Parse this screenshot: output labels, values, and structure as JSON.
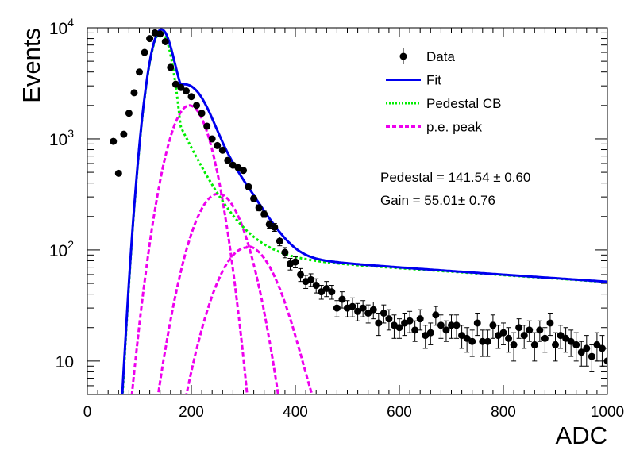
{
  "chart_data": {
    "type": "scatter",
    "xlabel": "ADC",
    "ylabel": "Events",
    "xlim": [
      0,
      1000
    ],
    "ylim": [
      5,
      10000
    ],
    "y_scale": "log",
    "x_ticks": [
      "0",
      "200",
      "400",
      "600",
      "800",
      "1000"
    ],
    "y_ticks": [
      {
        "label": "10",
        "sup": ""
      },
      {
        "label": "10",
        "sup": "2"
      },
      {
        "label": "10",
        "sup": "3"
      },
      {
        "label": "10",
        "sup": "4"
      }
    ],
    "legend_position": "top-right",
    "legend": [
      {
        "label": "Data",
        "style": "marker"
      },
      {
        "label": "Fit",
        "style": "line"
      },
      {
        "label": "Pedestal CB",
        "style": "dotted"
      },
      {
        "label": "p.e. peak",
        "style": "dashed"
      }
    ],
    "annotations": [
      {
        "name": "pedestal",
        "text": "Pedestal = 141.54 ± 0.60"
      },
      {
        "name": "gain",
        "text": "Gain = 55.01± 0.76"
      }
    ],
    "series": [
      {
        "name": "Data",
        "color": "#000000",
        "x": [
          50,
          60,
          70,
          80,
          90,
          100,
          110,
          120,
          130,
          140,
          150,
          160,
          170,
          180,
          190,
          200,
          210,
          220,
          230,
          240,
          250,
          260,
          270,
          280,
          290,
          300,
          310,
          320,
          330,
          340,
          350,
          360,
          370,
          380,
          390,
          400,
          410,
          420,
          430,
          440,
          450,
          460,
          470,
          480,
          490,
          500,
          510,
          520,
          530,
          540,
          550,
          560,
          570,
          580,
          590,
          600,
          610,
          620,
          630,
          640,
          650,
          660,
          670,
          680,
          690,
          700,
          710,
          720,
          730,
          740,
          750,
          760,
          770,
          780,
          790,
          800,
          810,
          820,
          830,
          840,
          850,
          860,
          870,
          880,
          890,
          900,
          910,
          920,
          930,
          940,
          950,
          960,
          970,
          980,
          990,
          1000
        ],
        "y": [
          950,
          490,
          1100,
          1700,
          2600,
          4000,
          6000,
          8000,
          9000,
          8800,
          7500,
          4400,
          3100,
          2900,
          2700,
          2400,
          2000,
          1700,
          1300,
          1000,
          870,
          790,
          640,
          580,
          550,
          520,
          370,
          290,
          240,
          210,
          170,
          160,
          120,
          95,
          75,
          78,
          60,
          52,
          54,
          48,
          42,
          45,
          42,
          30,
          36,
          30,
          31,
          28,
          30,
          27,
          29,
          22,
          27,
          24,
          21,
          20,
          22,
          23,
          19,
          24,
          17,
          18,
          26,
          21,
          19,
          21,
          21,
          17,
          16,
          15,
          22,
          15,
          15,
          21,
          17,
          18,
          16,
          14,
          20,
          17,
          19,
          14,
          19,
          16,
          22,
          14,
          17,
          16,
          15,
          14,
          12,
          13,
          11,
          14,
          13,
          10
        ],
        "yerr": [
          31,
          22,
          33,
          41,
          51,
          63,
          77,
          89,
          95,
          94,
          87,
          66,
          56,
          54,
          52,
          49,
          45,
          41,
          36,
          32,
          29,
          28,
          25,
          24,
          23,
          23,
          19,
          17,
          15,
          14,
          13,
          13,
          11,
          10,
          9,
          9,
          8,
          7,
          7,
          7,
          6,
          7,
          6,
          5,
          6,
          5,
          6,
          5,
          5,
          5,
          5,
          5,
          5,
          5,
          5,
          4,
          5,
          5,
          4,
          5,
          4,
          4,
          5,
          5,
          4,
          5,
          5,
          4,
          4,
          4,
          5,
          4,
          4,
          5,
          4,
          4,
          4,
          4,
          4,
          4,
          4,
          4,
          4,
          4,
          5,
          4,
          4,
          4,
          4,
          4,
          3,
          4,
          3,
          4,
          4,
          3
        ]
      }
    ],
    "model": {
      "name": "Fit",
      "pedestal": {
        "mean": 141.54,
        "sigma": 19,
        "amplitude": 9200,
        "tail_amplitude": 9.5,
        "tail_decay": 1400,
        "tail_rise": 45,
        "tail_norm_at": 260,
        "tail_level_at_norm": 320
      },
      "pe_peaks": [
        {
          "mean": 196.55,
          "sigma": 32,
          "amplitude": 2000,
          "tail_amplitude": 0,
          "tail_decay": 1
        },
        {
          "mean": 251.56,
          "sigma": 40,
          "amplitude": 320,
          "tail_amplitude": 0,
          "tail_decay": 1
        },
        {
          "mean": 306.57,
          "sigma": 47,
          "amplitude": 105,
          "tail_amplitude": 3.2,
          "tail_decay": 280
        }
      ]
    },
    "colors": {
      "fit": "#0000ee",
      "pedestal": "#00ee00",
      "pe_peak": "#ee00ee",
      "data": "#000000"
    }
  }
}
